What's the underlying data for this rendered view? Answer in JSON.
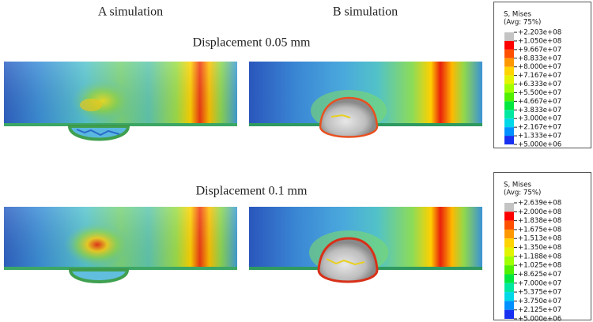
{
  "header": {
    "col_a": "A simulation",
    "col_b": "B simulation"
  },
  "rows": [
    {
      "caption": "Displacement 0.05 mm",
      "legend": {
        "title": "S, Mises",
        "subtitle": "(Avg: 75%)",
        "values": [
          "+2.203e+08",
          "+1.050e+08",
          "+9.667e+07",
          "+8.833e+07",
          "+8.000e+07",
          "+7.167e+07",
          "+6.333e+07",
          "+5.500e+07",
          "+4.667e+07",
          "+3.833e+07",
          "+3.000e+07",
          "+2.167e+07",
          "+1.333e+07",
          "+5.000e+06"
        ]
      }
    },
    {
      "caption": "Displacement 0.1 mm",
      "legend": {
        "title": "S, Mises",
        "subtitle": "(Avg: 75%)",
        "values": [
          "+2.639e+08",
          "+2.000e+08",
          "+1.838e+08",
          "+1.675e+08",
          "+1.513e+08",
          "+1.350e+08",
          "+1.188e+08",
          "+1.025e+08",
          "+8.625e+07",
          "+7.000e+07",
          "+5.375e+07",
          "+3.750e+07",
          "+2.125e+07",
          "+5.000e+06"
        ]
      }
    }
  ]
}
